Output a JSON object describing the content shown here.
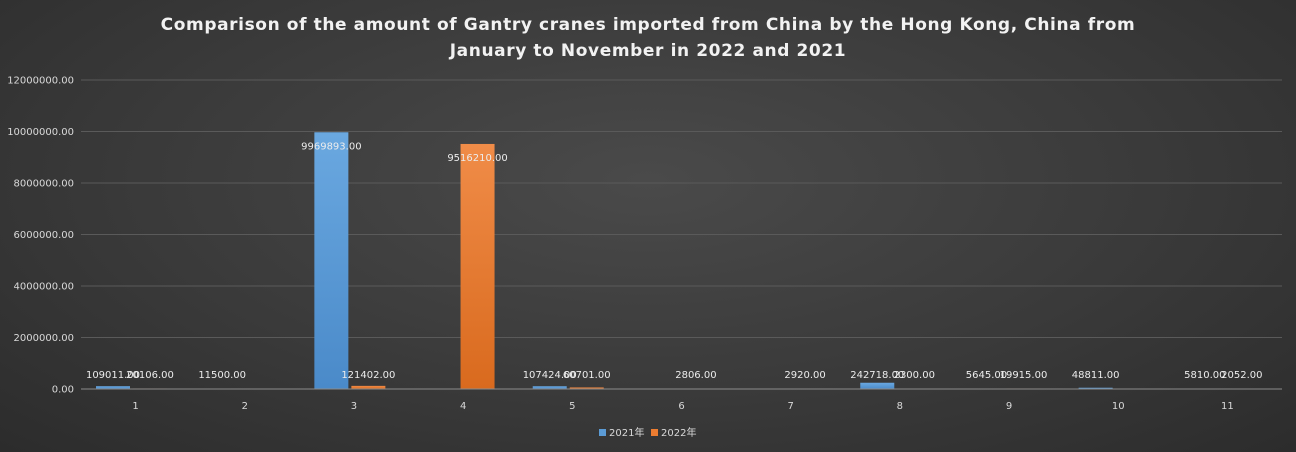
{
  "chart_data": {
    "type": "bar",
    "title_lines": [
      "Comparison of the amount of Gantry cranes imported from China by the Hong Kong, China from",
      "January to November in 2022 and 2021"
    ],
    "categories": [
      "1",
      "2",
      "3",
      "4",
      "5",
      "6",
      "7",
      "8",
      "9",
      "10",
      "11"
    ],
    "series": [
      {
        "name": "2021年",
        "color": "#5b9bd5",
        "values": [
          109011,
          11500,
          9969893,
          0,
          107424,
          0,
          0,
          242718,
          5645,
          48811,
          5810
        ],
        "labels": [
          "109011.00",
          "11500.00",
          "9969893.00",
          "",
          "107424.00",
          "",
          "",
          "242718.00",
          "5645.00",
          "48811.00",
          "5810.00"
        ]
      },
      {
        "name": "2022年",
        "color": "#ed7d31",
        "values": [
          20106,
          0,
          121402,
          9516210,
          60701,
          2806,
          2920,
          2300,
          19915,
          0,
          2052
        ],
        "labels": [
          "20106.00",
          "",
          "121402.00",
          "9516210.00",
          "60701.00",
          "2806.00",
          "2920.00",
          "2300.00",
          "19915.00",
          "",
          "2052.00"
        ]
      }
    ],
    "yticks": [
      "0.00",
      "2000000.00",
      "4000000.00",
      "6000000.00",
      "8000000.00",
      "10000000.00",
      "12000000.00"
    ],
    "ylim": [
      0,
      12000000
    ],
    "grid": true,
    "legend_position": "bottom"
  }
}
